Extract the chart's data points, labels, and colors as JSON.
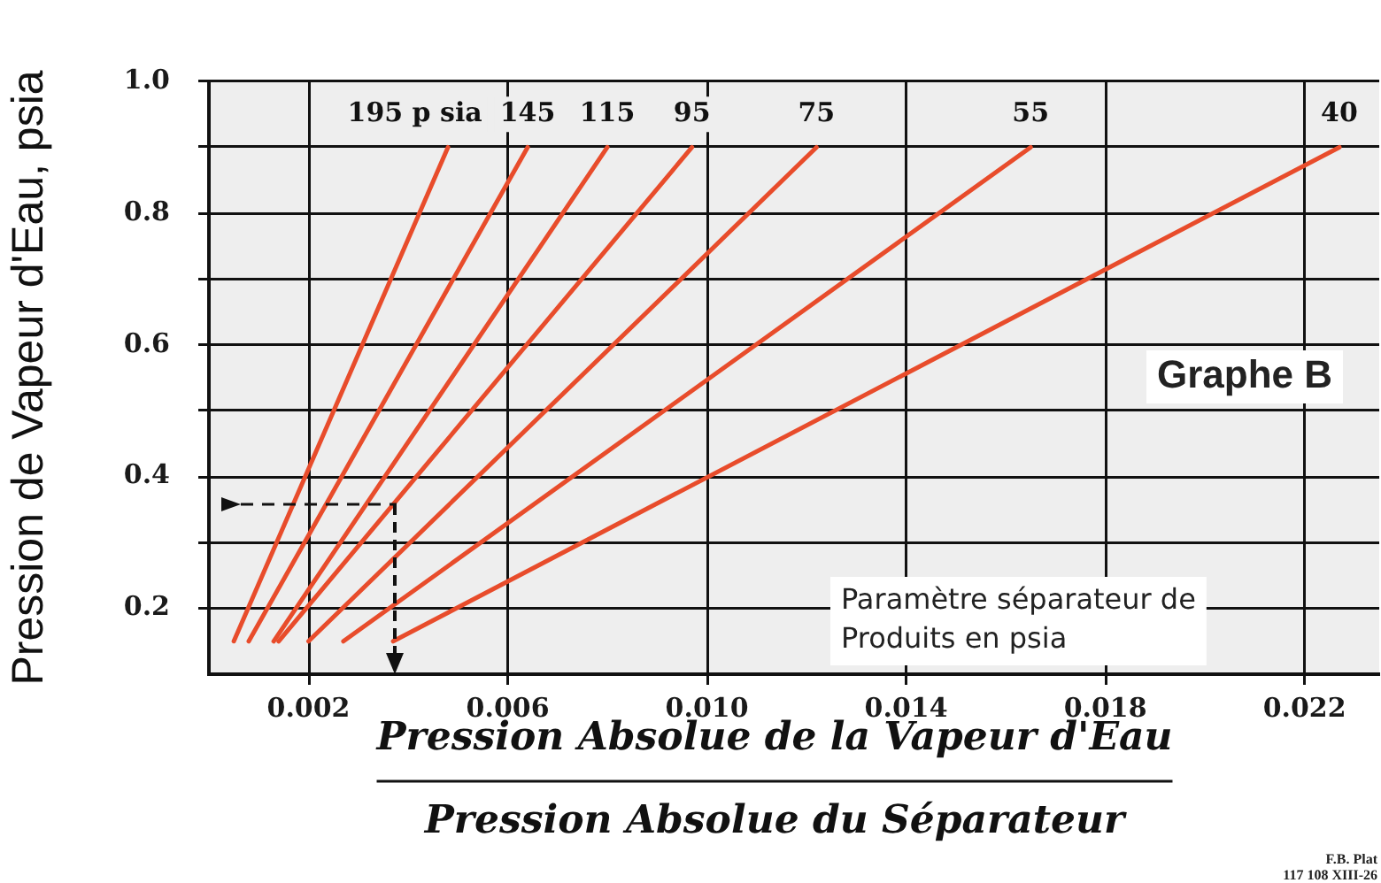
{
  "chart_data": {
    "type": "line",
    "xlabel": "Pression Absolue de la Vapeur d'Eau\nPression Absolue du Séparateur",
    "ylabel": "Pression de Vapeur d'Eau, psia",
    "xlim": [
      0,
      0.0235
    ],
    "ylim": [
      0.1,
      1.0
    ],
    "xticks": [
      0.002,
      0.006,
      {
        "value": 0.01,
        "label": "0.010"
      },
      0.014,
      0.018,
      0.022
    ],
    "yticks": [
      0.2,
      {
        "value": 0.3,
        "label": null
      },
      0.4,
      {
        "value": 0.5,
        "label": null
      },
      0.6,
      {
        "value": 0.7,
        "label": null
      },
      0.8,
      {
        "value": 0.9,
        "label": null
      },
      {
        "value": 1,
        "label": "1.0"
      }
    ],
    "grid": true,
    "marker": "none",
    "series": [
      {
        "name": "195 p sia",
        "color": "#e84c2b",
        "x": [
          0.0005,
          0.0048
        ],
        "values": [
          0.15,
          0.9
        ]
      },
      {
        "name": "145",
        "color": "#e84c2b",
        "x": [
          0.0008,
          0.0064
        ],
        "values": [
          0.15,
          0.9
        ]
      },
      {
        "name": "115",
        "color": "#e84c2b",
        "x": [
          0.0013,
          0.008
        ],
        "values": [
          0.15,
          0.9
        ]
      },
      {
        "name": "95",
        "color": "#e84c2b",
        "x": [
          0.0014,
          0.0097
        ],
        "values": [
          0.15,
          0.9
        ]
      },
      {
        "name": "75",
        "color": "#e84c2b",
        "x": [
          0.002,
          0.0122
        ],
        "values": [
          0.15,
          0.9
        ]
      },
      {
        "name": "55",
        "color": "#e84c2b",
        "x": [
          0.0027,
          0.0165
        ],
        "values": [
          0.15,
          0.9
        ]
      },
      {
        "name": "40",
        "color": "#e84c2b",
        "x": [
          0.0037,
          0.0227
        ],
        "values": [
          0.15,
          0.9
        ]
      }
    ],
    "annotations": [
      "Graphe B",
      "Paramètre séparateur de\nProduits en psia",
      "F.B. Plat\n117 108 XIII-26"
    ]
  }
}
